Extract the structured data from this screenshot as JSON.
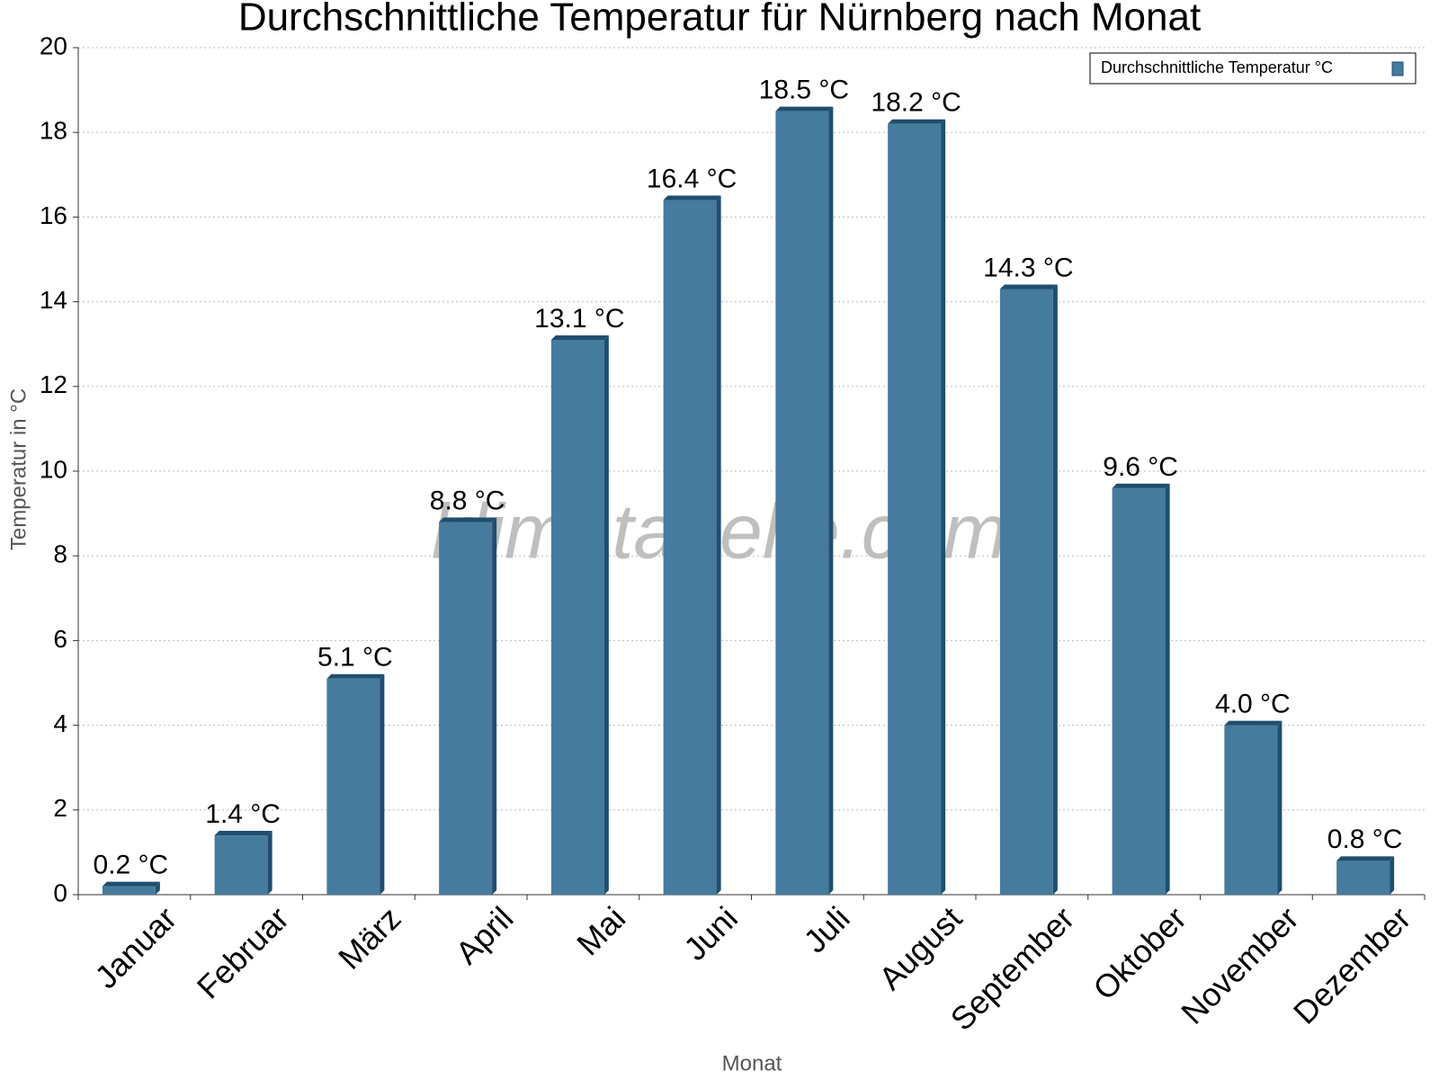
{
  "chart_data": {
    "type": "bar",
    "title": "Durchschnittliche Temperatur für Nürnberg nach Monat",
    "x_label": "Monat",
    "y_label": "Temperatur in °C",
    "watermark": "klimatabelle.com",
    "categories": [
      "Januar",
      "Februar",
      "März",
      "April",
      "Mai",
      "Juni",
      "Juli",
      "August",
      "September",
      "Oktober",
      "November",
      "Dezember"
    ],
    "series": [
      {
        "name": "Durchschnittliche Temperatur °C",
        "color": "#457b9d",
        "values": [
          0.2,
          1.4,
          5.1,
          8.8,
          13.1,
          16.4,
          18.5,
          18.2,
          14.3,
          9.6,
          4.0,
          0.8
        ],
        "value_labels": [
          "0.2 °C",
          "1.4 °C",
          "5.1 °C",
          "8.8 °C",
          "13.1 °C",
          "16.4 °C",
          "18.5 °C",
          "18.2 °C",
          "14.3 °C",
          "9.6 °C",
          "4.0 °C",
          "0.8 °C"
        ]
      }
    ],
    "ylim": [
      0,
      20
    ],
    "yticks": [
      0,
      2,
      4,
      6,
      8,
      10,
      12,
      14,
      16,
      18,
      20
    ],
    "grid": true,
    "legend": "top-right"
  }
}
